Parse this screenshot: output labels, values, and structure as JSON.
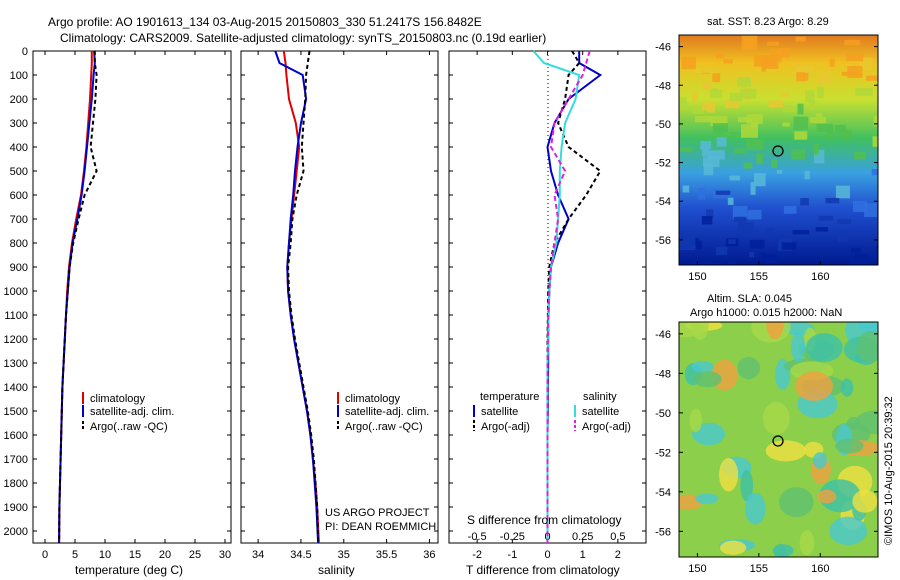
{
  "header": {
    "line1": "Argo profile: AO 1901613_134 03-Aug-2015 20150803_330 51.2417S 156.8482E",
    "line2": "Climatology: CARS2009. Satellite-adjusted climatology: synTS_20150803.nc (0.19d earlier)"
  },
  "colors": {
    "climatology": "#e00000",
    "satellite": "#0000cc",
    "argo": "#000000",
    "satellite_salinity": "#33dddd",
    "argo_adj_salinity": "#dd22dd"
  },
  "depth_ticks": [
    "0",
    "100",
    "200",
    "300",
    "400",
    "500",
    "600",
    "700",
    "800",
    "900",
    "1000",
    "1100",
    "1200",
    "1300",
    "1400",
    "1500",
    "1600",
    "1700",
    "1800",
    "1900",
    "2000"
  ],
  "panels": {
    "temperature": {
      "xlabel": "temperature (deg C)",
      "xticks": [
        "0",
        "5",
        "10",
        "15",
        "20",
        "25",
        "30"
      ],
      "legend": [
        "climatology",
        "satellite-adj. clim.",
        "Argo(..raw -QC)"
      ]
    },
    "salinity": {
      "xlabel": "salinity",
      "xticks": [
        "34",
        "34.5",
        "35",
        "35.5",
        "36"
      ],
      "legend": [
        "climatology",
        "satellite-adj. clim.",
        "Argo(..raw -QC)"
      ],
      "credit1": "US ARGO PROJECT",
      "credit2": "PI: DEAN ROEMMICH"
    },
    "difference": {
      "xlabel": "T difference from climatology",
      "toplabel": "S difference from climatology",
      "xticks": [
        "-2",
        "-1",
        "0",
        "1",
        "2"
      ],
      "sticks": [
        "-0.5",
        "-0.25",
        "0",
        "0.25",
        "0.5"
      ],
      "legend_t_title": "temperature",
      "legend_s_title": "salinity",
      "legend_t": [
        "satellite",
        "Argo(-adj)"
      ],
      "legend_s": [
        "satellite",
        "Argo(-adj)"
      ]
    }
  },
  "maps": {
    "sst": {
      "title": "sat. SST: 8.23  Argo: 8.29",
      "yticks": [
        "-46",
        "-48",
        "-50",
        "-52",
        "-54",
        "-56"
      ],
      "xticks": [
        "150",
        "155",
        "160"
      ]
    },
    "sla": {
      "title1": "Altim. SLA: 0.045",
      "title2": "Argo h1000: 0.015 h2000: NaN",
      "yticks": [
        "-46",
        "-48",
        "-50",
        "-52",
        "-54",
        "-56"
      ],
      "xticks": [
        "150",
        "155",
        "160"
      ]
    }
  },
  "footer": "©IMOS 10-Aug-2015 20:39:32",
  "chart_data": [
    {
      "type": "line",
      "title": "",
      "xlabel": "temperature (deg C)",
      "ylabel": "",
      "xlim": [
        -2,
        31
      ],
      "ylim": [
        2050,
        0
      ],
      "series": [
        {
          "name": "climatology",
          "x": [
            7.8,
            7.8,
            7.7,
            7.5,
            7.2,
            6.9,
            6.5,
            6.0,
            5.2,
            4.5,
            4.0,
            3.7,
            3.5,
            3.3,
            3.1,
            2.9,
            2.8,
            2.7,
            2.6,
            2.5,
            2.4,
            2.35
          ],
          "y": [
            0,
            50,
            100,
            200,
            300,
            400,
            500,
            600,
            700,
            800,
            900,
            1000,
            1100,
            1200,
            1300,
            1400,
            1500,
            1600,
            1700,
            1800,
            1900,
            2050
          ]
        },
        {
          "name": "satellite-adj. clim.",
          "x": [
            8.2,
            8.3,
            8.1,
            7.8,
            7.4,
            7.0,
            6.6,
            6.1,
            5.4,
            4.6,
            4.1,
            3.8,
            3.5,
            3.3,
            3.1,
            2.9,
            2.8,
            2.7,
            2.6,
            2.5,
            2.4,
            2.35
          ],
          "y": [
            0,
            50,
            100,
            200,
            300,
            400,
            500,
            600,
            700,
            800,
            900,
            1000,
            1100,
            1200,
            1300,
            1400,
            1500,
            1600,
            1700,
            1800,
            1900,
            2050
          ]
        },
        {
          "name": "Argo(..raw -QC)",
          "x": [
            8.3,
            8.3,
            8.6,
            8.4,
            8.0,
            7.6,
            8.6,
            6.6,
            5.6,
            4.7,
            4.1,
            3.8,
            3.5,
            3.3,
            3.1,
            2.9,
            2.8,
            2.7,
            2.6,
            2.5,
            2.4,
            2.35
          ],
          "y": [
            0,
            50,
            100,
            200,
            300,
            400,
            500,
            600,
            700,
            800,
            900,
            1000,
            1100,
            1200,
            1300,
            1400,
            1500,
            1600,
            1700,
            1800,
            1900,
            2050
          ]
        }
      ]
    },
    {
      "type": "line",
      "title": "",
      "xlabel": "salinity",
      "ylabel": "",
      "xlim": [
        33.8,
        36.1
      ],
      "ylim": [
        2050,
        0
      ],
      "series": [
        {
          "name": "climatology",
          "x": [
            34.3,
            34.32,
            34.33,
            34.36,
            34.44,
            34.48,
            34.45,
            34.42,
            34.39,
            34.36,
            34.34,
            34.35,
            34.38,
            34.42,
            34.47,
            34.52,
            34.57,
            34.61,
            34.64,
            34.67,
            34.69,
            34.71
          ],
          "y": [
            0,
            50,
            100,
            200,
            300,
            400,
            500,
            600,
            700,
            800,
            900,
            1000,
            1100,
            1200,
            1300,
            1400,
            1500,
            1600,
            1700,
            1800,
            1900,
            2050
          ]
        },
        {
          "name": "satellite-adj. clim.",
          "x": [
            34.2,
            34.25,
            34.52,
            34.56,
            34.5,
            34.46,
            34.43,
            34.41,
            34.38,
            34.36,
            34.34,
            34.35,
            34.38,
            34.42,
            34.47,
            34.52,
            34.57,
            34.61,
            34.64,
            34.66,
            34.68,
            34.7
          ],
          "y": [
            0,
            50,
            100,
            200,
            300,
            400,
            500,
            600,
            700,
            800,
            900,
            1000,
            1100,
            1200,
            1300,
            1400,
            1500,
            1600,
            1700,
            1800,
            1900,
            2050
          ]
        },
        {
          "name": "Argo(..raw -QC)",
          "x": [
            34.6,
            34.58,
            34.56,
            34.55,
            34.53,
            34.51,
            34.53,
            34.45,
            34.4,
            34.38,
            34.35,
            34.36,
            34.39,
            34.43,
            34.48,
            34.53,
            34.58,
            34.62,
            34.65,
            34.67,
            34.69,
            34.7
          ],
          "y": [
            0,
            50,
            100,
            200,
            300,
            400,
            500,
            600,
            700,
            800,
            900,
            1000,
            1100,
            1200,
            1300,
            1400,
            1500,
            1600,
            1700,
            1800,
            1900,
            2050
          ]
        }
      ]
    },
    {
      "type": "line",
      "title": "",
      "xlabel": "T difference from climatology",
      "ylabel": "",
      "xlim": [
        -2.8,
        2.8
      ],
      "ylim": [
        2050,
        0
      ],
      "series": [
        {
          "name": "temperature satellite",
          "x": [
            0.9,
            0.9,
            1.5,
            0.6,
            0.2,
            0.0,
            0.1,
            0.3,
            0.6,
            0.3,
            0.1,
            0.05,
            0.03,
            0.02,
            0.02,
            0.01,
            0.01,
            0.0,
            0.0,
            0.0,
            0.0
          ],
          "y": [
            0,
            50,
            100,
            200,
            300,
            400,
            500,
            600,
            700,
            800,
            900,
            1000,
            1100,
            1200,
            1300,
            1400,
            1500,
            1600,
            1700,
            1800,
            2050
          ]
        },
        {
          "name": "temperature Argo(-adj)",
          "x": [
            0.7,
            0.9,
            0.6,
            0.5,
            0.3,
            0.6,
            1.5,
            1.1,
            0.6,
            0.2,
            0.05,
            0.02,
            0.01,
            0.0,
            0.0,
            0.0,
            0.0,
            0.0,
            0.0,
            0.0,
            0.0
          ],
          "y": [
            0,
            50,
            100,
            200,
            300,
            400,
            500,
            600,
            700,
            800,
            900,
            1000,
            1100,
            1200,
            1300,
            1400,
            1500,
            1600,
            1700,
            1800,
            2050
          ]
        },
        {
          "name": "salinity satellite",
          "x": [
            -0.4,
            -0.1,
            0.9,
            0.8,
            0.5,
            0.4,
            0.35,
            0.35,
            0.3,
            0.25,
            0.1,
            0.05,
            0.03,
            0.02,
            0.0,
            0.0,
            0.0,
            0.0,
            0.0,
            0.0,
            0.0
          ],
          "y": [
            0,
            50,
            100,
            200,
            300,
            400,
            500,
            600,
            700,
            800,
            900,
            1000,
            1100,
            1200,
            1300,
            1400,
            1500,
            1600,
            1700,
            1800,
            2050
          ]
        },
        {
          "name": "salinity Argo(-adj)",
          "x": [
            1.2,
            1.1,
            1.0,
            0.6,
            0.2,
            0.1,
            0.5,
            0.2,
            0.3,
            0.2,
            0.1,
            0.05,
            0.02,
            0.01,
            0.0,
            0.0,
            0.0,
            0.0,
            0.0,
            0.0,
            0.0
          ],
          "y": [
            0,
            50,
            100,
            200,
            300,
            400,
            500,
            600,
            700,
            800,
            900,
            1000,
            1100,
            1200,
            1300,
            1400,
            1500,
            1600,
            1700,
            1800,
            2050
          ]
        }
      ]
    },
    {
      "type": "heatmap",
      "title": "sat. SST: 8.23  Argo: 8.29",
      "xlabel": "",
      "ylabel": "",
      "xlim": [
        148.5,
        164.7
      ],
      "ylim": [
        -57.3,
        -45.4
      ],
      "argo_position": [
        156.85,
        -51.24
      ]
    },
    {
      "type": "heatmap",
      "title": "Altim. SLA: 0.045",
      "xlabel": "",
      "ylabel": "",
      "xlim": [
        148.5,
        164.7
      ],
      "ylim": [
        -57.3,
        -45.4
      ],
      "argo_position": [
        156.85,
        -51.24
      ]
    }
  ]
}
